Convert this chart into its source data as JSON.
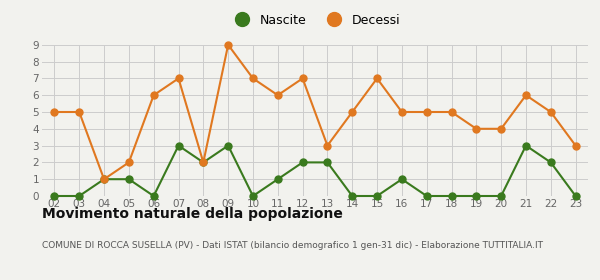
{
  "years": [
    "02",
    "03",
    "04",
    "05",
    "06",
    "07",
    "08",
    "09",
    "10",
    "11",
    "12",
    "13",
    "14",
    "15",
    "16",
    "17",
    "18",
    "19",
    "20",
    "21",
    "22",
    "23"
  ],
  "nascite": [
    0,
    0,
    1,
    1,
    0,
    3,
    2,
    3,
    0,
    1,
    2,
    2,
    0,
    0,
    1,
    0,
    0,
    0,
    0,
    3,
    2,
    0
  ],
  "decessi": [
    5,
    5,
    1,
    2,
    6,
    7,
    2,
    9,
    7,
    6,
    7,
    3,
    5,
    7,
    5,
    5,
    5,
    4,
    4,
    6,
    5,
    3
  ],
  "nascite_color": "#3a7a1e",
  "decessi_color": "#e07820",
  "background_color": "#f2f2ee",
  "grid_color": "#cccccc",
  "title": "Movimento naturale della popolazione",
  "subtitle": "COMUNE DI ROCCA SUSELLA (PV) - Dati ISTAT (bilancio demografico 1 gen-31 dic) - Elaborazione TUTTITALIA.IT",
  "ylim": [
    0,
    9
  ],
  "yticks": [
    0,
    1,
    2,
    3,
    4,
    5,
    6,
    7,
    8,
    9
  ],
  "legend_nascite": "Nascite",
  "legend_decessi": "Decessi",
  "title_fontsize": 10,
  "subtitle_fontsize": 6.5,
  "tick_fontsize": 7.5,
  "legend_fontsize": 9,
  "line_width": 1.5,
  "marker_size": 5
}
